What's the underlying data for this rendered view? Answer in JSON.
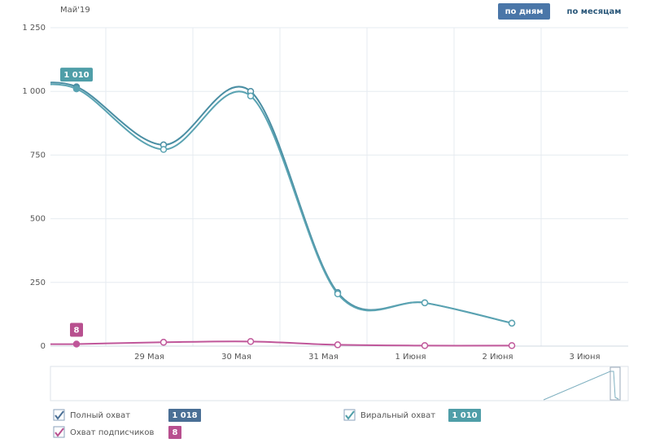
{
  "chart_data": {
    "type": "line",
    "period": "Май'19",
    "buttons": [
      "по дням",
      "по месяцам"
    ],
    "categories": [
      null,
      "29 Мая",
      "30 Мая",
      "31 Мая",
      "1 Июня",
      "2 Июня",
      "3 Июня"
    ],
    "ylim": [
      0,
      1250
    ],
    "yticks": [
      0,
      250,
      500,
      750,
      {
        "value": 1000,
        "label": "1 000"
      },
      {
        "value": 1250,
        "label": "1 250"
      }
    ],
    "grid": true,
    "series": [
      {
        "name": "Полный охват",
        "color": "#4a8ea3",
        "badge_color": "#4a6f95",
        "values": [
          1018,
          790,
          1000,
          210,
          170,
          90,
          null
        ],
        "legend_value": {
          "value": 1018,
          "label": "1 018"
        }
      },
      {
        "name": "Виральный охват",
        "color": "#5aa3b2",
        "badge_color": "#4f9ea8",
        "values": [
          1010,
          772,
          982,
          205,
          170,
          90,
          null
        ],
        "value_labels": [
          "1 010",
          null,
          null,
          null,
          null,
          null,
          null
        ],
        "legend_value": {
          "value": 1010,
          "label": "1 010"
        }
      },
      {
        "name": "Охват подписчиков",
        "color": "#c0579a",
        "badge_color": "#b8508f",
        "values": [
          8,
          15,
          18,
          5,
          2,
          2,
          null
        ],
        "value_labels": [
          "8",
          null,
          null,
          null,
          null,
          null,
          null
        ],
        "legend_value": {
          "value": 8,
          "label": "8"
        }
      }
    ]
  }
}
